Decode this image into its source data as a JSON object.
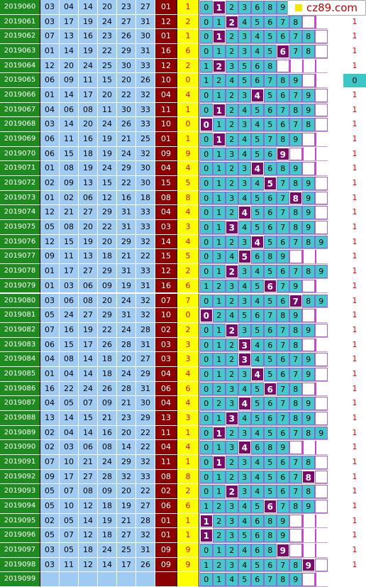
{
  "watermark": {
    "text": "cz89.com"
  },
  "colors": {
    "period_bg": "#1f8a1f",
    "num_bg": "#9fcbf2",
    "sum_tail_bg": "#8b0000",
    "digit_bg": "#ffff00",
    "band_bg": "#43c9c9",
    "hit_bg": "#7a0a6a"
  },
  "rows": [
    {
      "p": "2019060",
      "n": [
        "03",
        "04",
        "14",
        "20",
        "23",
        "27"
      ],
      "s": "01",
      "d": "1",
      "band": [
        "0",
        "1",
        "2",
        "3",
        "6",
        "8",
        "9",
        null,
        null,
        null
      ],
      "hit": "1",
      "r": "1"
    },
    {
      "p": "2019061",
      "n": [
        "03",
        "17",
        "19",
        "24",
        "27",
        "31"
      ],
      "s": "12",
      "d": "2",
      "band": [
        "0",
        "1",
        "2",
        "4",
        "5",
        "6",
        "7",
        "8",
        null,
        null
      ],
      "hit": "2",
      "r": "1"
    },
    {
      "p": "2019062",
      "n": [
        "07",
        "13",
        "16",
        "23",
        "26",
        "30"
      ],
      "s": "01",
      "d": "1",
      "band": [
        "0",
        "1",
        "2",
        "3",
        "4",
        "5",
        "6",
        "7",
        "8",
        null
      ],
      "hit": "1",
      "r": "1"
    },
    {
      "p": "2019063",
      "n": [
        "01",
        "14",
        "19",
        "22",
        "29",
        "31"
      ],
      "s": "16",
      "d": "6",
      "band": [
        "0",
        "1",
        "2",
        "3",
        "4",
        "5",
        "6",
        "7",
        "8",
        null
      ],
      "hit": "6",
      "r": "1"
    },
    {
      "p": "2019064",
      "n": [
        "12",
        "20",
        "24",
        "25",
        "30",
        "33"
      ],
      "s": "12",
      "d": "2",
      "band": [
        "1",
        "2",
        "3",
        "5",
        "6",
        "8",
        null,
        null,
        null,
        null
      ],
      "hit": "2",
      "r": "1"
    },
    {
      "p": "2019065",
      "n": [
        "06",
        "09",
        "11",
        "15",
        "20",
        "26"
      ],
      "s": "10",
      "d": "0",
      "band": [
        "1",
        "2",
        "4",
        "5",
        "6",
        "7",
        "8",
        "9",
        null,
        null
      ],
      "hit": null,
      "r": "0"
    },
    {
      "p": "2019066",
      "n": [
        "01",
        "14",
        "17",
        "20",
        "22",
        "32"
      ],
      "s": "04",
      "d": "4",
      "band": [
        "0",
        "1",
        "2",
        "3",
        "4",
        "5",
        "6",
        "7",
        "9",
        null
      ],
      "hit": "4",
      "r": "1"
    },
    {
      "p": "2019067",
      "n": [
        "04",
        "06",
        "08",
        "11",
        "30",
        "33"
      ],
      "s": "11",
      "d": "1",
      "band": [
        "0",
        "1",
        "2",
        "4",
        "5",
        "6",
        "7",
        "8",
        "9",
        null
      ],
      "hit": "1",
      "r": "1"
    },
    {
      "p": "2019068",
      "n": [
        "03",
        "14",
        "20",
        "24",
        "26",
        "33"
      ],
      "s": "10",
      "d": "0",
      "band": [
        "0",
        "1",
        "2",
        "3",
        "4",
        "5",
        "6",
        "7",
        "8",
        null
      ],
      "hit": "0",
      "r": "1"
    },
    {
      "p": "2019069",
      "n": [
        "06",
        "11",
        "16",
        "19",
        "21",
        "25"
      ],
      "s": "01",
      "d": "1",
      "band": [
        "0",
        "1",
        "2",
        "4",
        "5",
        "7",
        "8",
        "9",
        null,
        null
      ],
      "hit": "1",
      "r": "1"
    },
    {
      "p": "2019070",
      "n": [
        "06",
        "15",
        "18",
        "19",
        "24",
        "32"
      ],
      "s": "09",
      "d": "9",
      "band": [
        "0",
        "1",
        "3",
        "4",
        "5",
        "6",
        "9",
        null,
        null,
        null
      ],
      "hit": "9",
      "r": "1"
    },
    {
      "p": "2019071",
      "n": [
        "01",
        "08",
        "19",
        "24",
        "29",
        "30"
      ],
      "s": "04",
      "d": "4",
      "band": [
        "0",
        "1",
        "2",
        "3",
        "4",
        "6",
        "8",
        "9",
        null,
        null
      ],
      "hit": "4",
      "r": "1"
    },
    {
      "p": "2019072",
      "n": [
        "02",
        "09",
        "13",
        "15",
        "22",
        "30"
      ],
      "s": "15",
      "d": "5",
      "band": [
        "0",
        "1",
        "2",
        "3",
        "4",
        "5",
        "7",
        "8",
        "9",
        null
      ],
      "hit": "5",
      "r": "1"
    },
    {
      "p": "2019073",
      "n": [
        "01",
        "02",
        "06",
        "12",
        "16",
        "18"
      ],
      "s": "08",
      "d": "8",
      "band": [
        "0",
        "1",
        "3",
        "4",
        "5",
        "6",
        "7",
        "8",
        "9",
        null
      ],
      "hit": "8",
      "r": "1"
    },
    {
      "p": "2019074",
      "n": [
        "12",
        "21",
        "27",
        "29",
        "31",
        "33"
      ],
      "s": "04",
      "d": "4",
      "band": [
        "0",
        "1",
        "2",
        "4",
        "5",
        "6",
        "7",
        "8",
        "9",
        null
      ],
      "hit": "4",
      "r": "1"
    },
    {
      "p": "2019075",
      "n": [
        "05",
        "08",
        "20",
        "22",
        "31",
        "33"
      ],
      "s": "03",
      "d": "3",
      "band": [
        "0",
        "1",
        "3",
        "4",
        "5",
        "6",
        "7",
        "8",
        "9",
        null
      ],
      "hit": "3",
      "r": "1"
    },
    {
      "p": "2019076",
      "n": [
        "12",
        "15",
        "19",
        "20",
        "29",
        "32"
      ],
      "s": "14",
      "d": "4",
      "band": [
        "0",
        "1",
        "2",
        "3",
        "4",
        "5",
        "6",
        "7",
        "8",
        "9"
      ],
      "hit": "4",
      "r": "1"
    },
    {
      "p": "2019077",
      "n": [
        "09",
        "11",
        "13",
        "18",
        "21",
        "22"
      ],
      "s": "15",
      "d": "5",
      "band": [
        "0",
        "3",
        "4",
        "5",
        "6",
        "8",
        "9",
        null,
        null,
        null
      ],
      "hit": "5",
      "r": "1"
    },
    {
      "p": "2019078",
      "n": [
        "01",
        "17",
        "27",
        "29",
        "31",
        "33"
      ],
      "s": "12",
      "d": "2",
      "band": [
        "0",
        "1",
        "2",
        "3",
        "4",
        "5",
        "6",
        "7",
        "8",
        "9"
      ],
      "hit": "2",
      "r": "1"
    },
    {
      "p": "2019079",
      "n": [
        "01",
        "03",
        "06",
        "09",
        "19",
        "31"
      ],
      "s": "16",
      "d": "6",
      "band": [
        "1",
        "2",
        "3",
        "4",
        "5",
        "6",
        "7",
        "9",
        null,
        null
      ],
      "hit": "6",
      "r": "1"
    },
    {
      "p": "2019080",
      "n": [
        "03",
        "06",
        "08",
        "20",
        "24",
        "32"
      ],
      "s": "07",
      "d": "7",
      "band": [
        "0",
        "1",
        "2",
        "3",
        "4",
        "5",
        "6",
        "7",
        "8",
        "9"
      ],
      "hit": "7",
      "r": "1"
    },
    {
      "p": "2019081",
      "n": [
        "05",
        "24",
        "27",
        "29",
        "31",
        "32"
      ],
      "s": "10",
      "d": "0",
      "band": [
        "0",
        "2",
        "4",
        "5",
        "6",
        "7",
        "8",
        "9",
        null,
        null
      ],
      "hit": "0",
      "r": "1"
    },
    {
      "p": "2019082",
      "n": [
        "07",
        "16",
        "19",
        "22",
        "24",
        "28"
      ],
      "s": "02",
      "d": "2",
      "band": [
        "0",
        "1",
        "2",
        "3",
        "5",
        "6",
        "7",
        "8",
        "9",
        null
      ],
      "hit": "2",
      "r": "1"
    },
    {
      "p": "2019083",
      "n": [
        "06",
        "15",
        "17",
        "26",
        "28",
        "31"
      ],
      "s": "03",
      "d": "3",
      "band": [
        "0",
        "1",
        "2",
        "3",
        "4",
        "6",
        "7",
        "8",
        null,
        null
      ],
      "hit": "3",
      "r": "1"
    },
    {
      "p": "2019084",
      "n": [
        "04",
        "08",
        "14",
        "18",
        "20",
        "27"
      ],
      "s": "03",
      "d": "3",
      "band": [
        "0",
        "1",
        "2",
        "3",
        "4",
        "5",
        "6",
        "7",
        "9",
        null
      ],
      "hit": "3",
      "r": "1"
    },
    {
      "p": "2019085",
      "n": [
        "01",
        "04",
        "14",
        "18",
        "24",
        "29"
      ],
      "s": "04",
      "d": "4",
      "band": [
        "0",
        "1",
        "2",
        "3",
        "4",
        "5",
        "6",
        "7",
        "9",
        null
      ],
      "hit": "4",
      "r": "1"
    },
    {
      "p": "2019086",
      "n": [
        "16",
        "22",
        "24",
        "26",
        "28",
        "31"
      ],
      "s": "06",
      "d": "6",
      "band": [
        "0",
        "2",
        "3",
        "4",
        "5",
        "6",
        "7",
        "8",
        null,
        null
      ],
      "hit": "6",
      "r": "1"
    },
    {
      "p": "2019087",
      "n": [
        "04",
        "05",
        "07",
        "09",
        "21",
        "30"
      ],
      "s": "04",
      "d": "4",
      "band": [
        "0",
        "2",
        "3",
        "4",
        "5",
        "6",
        "7",
        "8",
        "9",
        null
      ],
      "hit": "4",
      "r": "1"
    },
    {
      "p": "2019088",
      "n": [
        "13",
        "14",
        "15",
        "21",
        "23",
        "29"
      ],
      "s": "13",
      "d": "3",
      "band": [
        "0",
        "1",
        "3",
        "4",
        "5",
        "6",
        "7",
        "8",
        "9",
        null
      ],
      "hit": "3",
      "r": "1"
    },
    {
      "p": "2019089",
      "n": [
        "02",
        "04",
        "14",
        "16",
        "20",
        "22"
      ],
      "s": "11",
      "d": "1",
      "band": [
        "0",
        "1",
        "2",
        "3",
        "4",
        "5",
        "6",
        "7",
        "8",
        "9"
      ],
      "hit": "1",
      "r": "1"
    },
    {
      "p": "2019090",
      "n": [
        "02",
        "03",
        "06",
        "08",
        "14",
        "22"
      ],
      "s": "04",
      "d": "4",
      "band": [
        "0",
        "1",
        "3",
        "4",
        "6",
        "8",
        "9",
        null,
        null,
        null
      ],
      "hit": "4",
      "r": "1"
    },
    {
      "p": "2019091",
      "n": [
        "07",
        "10",
        "21",
        "24",
        "29",
        "32"
      ],
      "s": "11",
      "d": "1",
      "band": [
        "0",
        "1",
        "2",
        "3",
        "4",
        "5",
        "6",
        "7",
        "8",
        null
      ],
      "hit": "1",
      "r": "1"
    },
    {
      "p": "2019092",
      "n": [
        "09",
        "17",
        "27",
        "28",
        "32",
        "33"
      ],
      "s": "08",
      "d": "8",
      "band": [
        "0",
        "1",
        "2",
        "3",
        "4",
        "5",
        "6",
        "7",
        "8",
        null
      ],
      "hit": "8",
      "r": "1"
    },
    {
      "p": "2019093",
      "n": [
        "05",
        "07",
        "08",
        "09",
        "20",
        "22"
      ],
      "s": "02",
      "d": "2",
      "band": [
        "0",
        "1",
        "2",
        "3",
        "4",
        "5",
        "6",
        "7",
        "8",
        null
      ],
      "hit": "2",
      "r": "1"
    },
    {
      "p": "2019094",
      "n": [
        "05",
        "10",
        "12",
        "18",
        "19",
        "27"
      ],
      "s": "06",
      "d": "6",
      "band": [
        "1",
        "2",
        "3",
        "4",
        "5",
        "6",
        "7",
        "8",
        "9",
        null
      ],
      "hit": "6",
      "r": "1"
    },
    {
      "p": "2019095",
      "n": [
        "02",
        "05",
        "14",
        "19",
        "21",
        "28"
      ],
      "s": "01",
      "d": "1",
      "band": [
        "1",
        "2",
        "3",
        "4",
        "6",
        "8",
        "9",
        null,
        null,
        null
      ],
      "hit": "1",
      "r": "1"
    },
    {
      "p": "2019096",
      "n": [
        "05",
        "07",
        "12",
        "18",
        "27",
        "32"
      ],
      "s": "01",
      "d": "1",
      "band": [
        "1",
        "2",
        "3",
        "5",
        "6",
        "8",
        "9",
        null,
        null,
        null
      ],
      "hit": "1",
      "r": "1"
    },
    {
      "p": "2019097",
      "n": [
        "03",
        "05",
        "18",
        "24",
        "25",
        "31"
      ],
      "s": "09",
      "d": "9",
      "band": [
        "0",
        "1",
        "2",
        "4",
        "6",
        "8",
        "9",
        null,
        null,
        null
      ],
      "hit": "9",
      "r": "1"
    },
    {
      "p": "2019098",
      "n": [
        "03",
        "11",
        "12",
        "14",
        "17",
        "26"
      ],
      "s": "09",
      "d": "9",
      "band": [
        "1",
        "2",
        "3",
        "4",
        "5",
        "6",
        "7",
        "8",
        "9",
        null
      ],
      "hit": "9",
      "r": "1"
    },
    {
      "p": "2019099",
      "n": [
        "",
        "",
        "",
        "",
        "",
        ""
      ],
      "s": "",
      "d": "",
      "band": [
        "0",
        "1",
        "4",
        "5",
        "6",
        "7",
        "8",
        "9",
        null,
        null
      ],
      "hit": null,
      "r": ""
    }
  ]
}
